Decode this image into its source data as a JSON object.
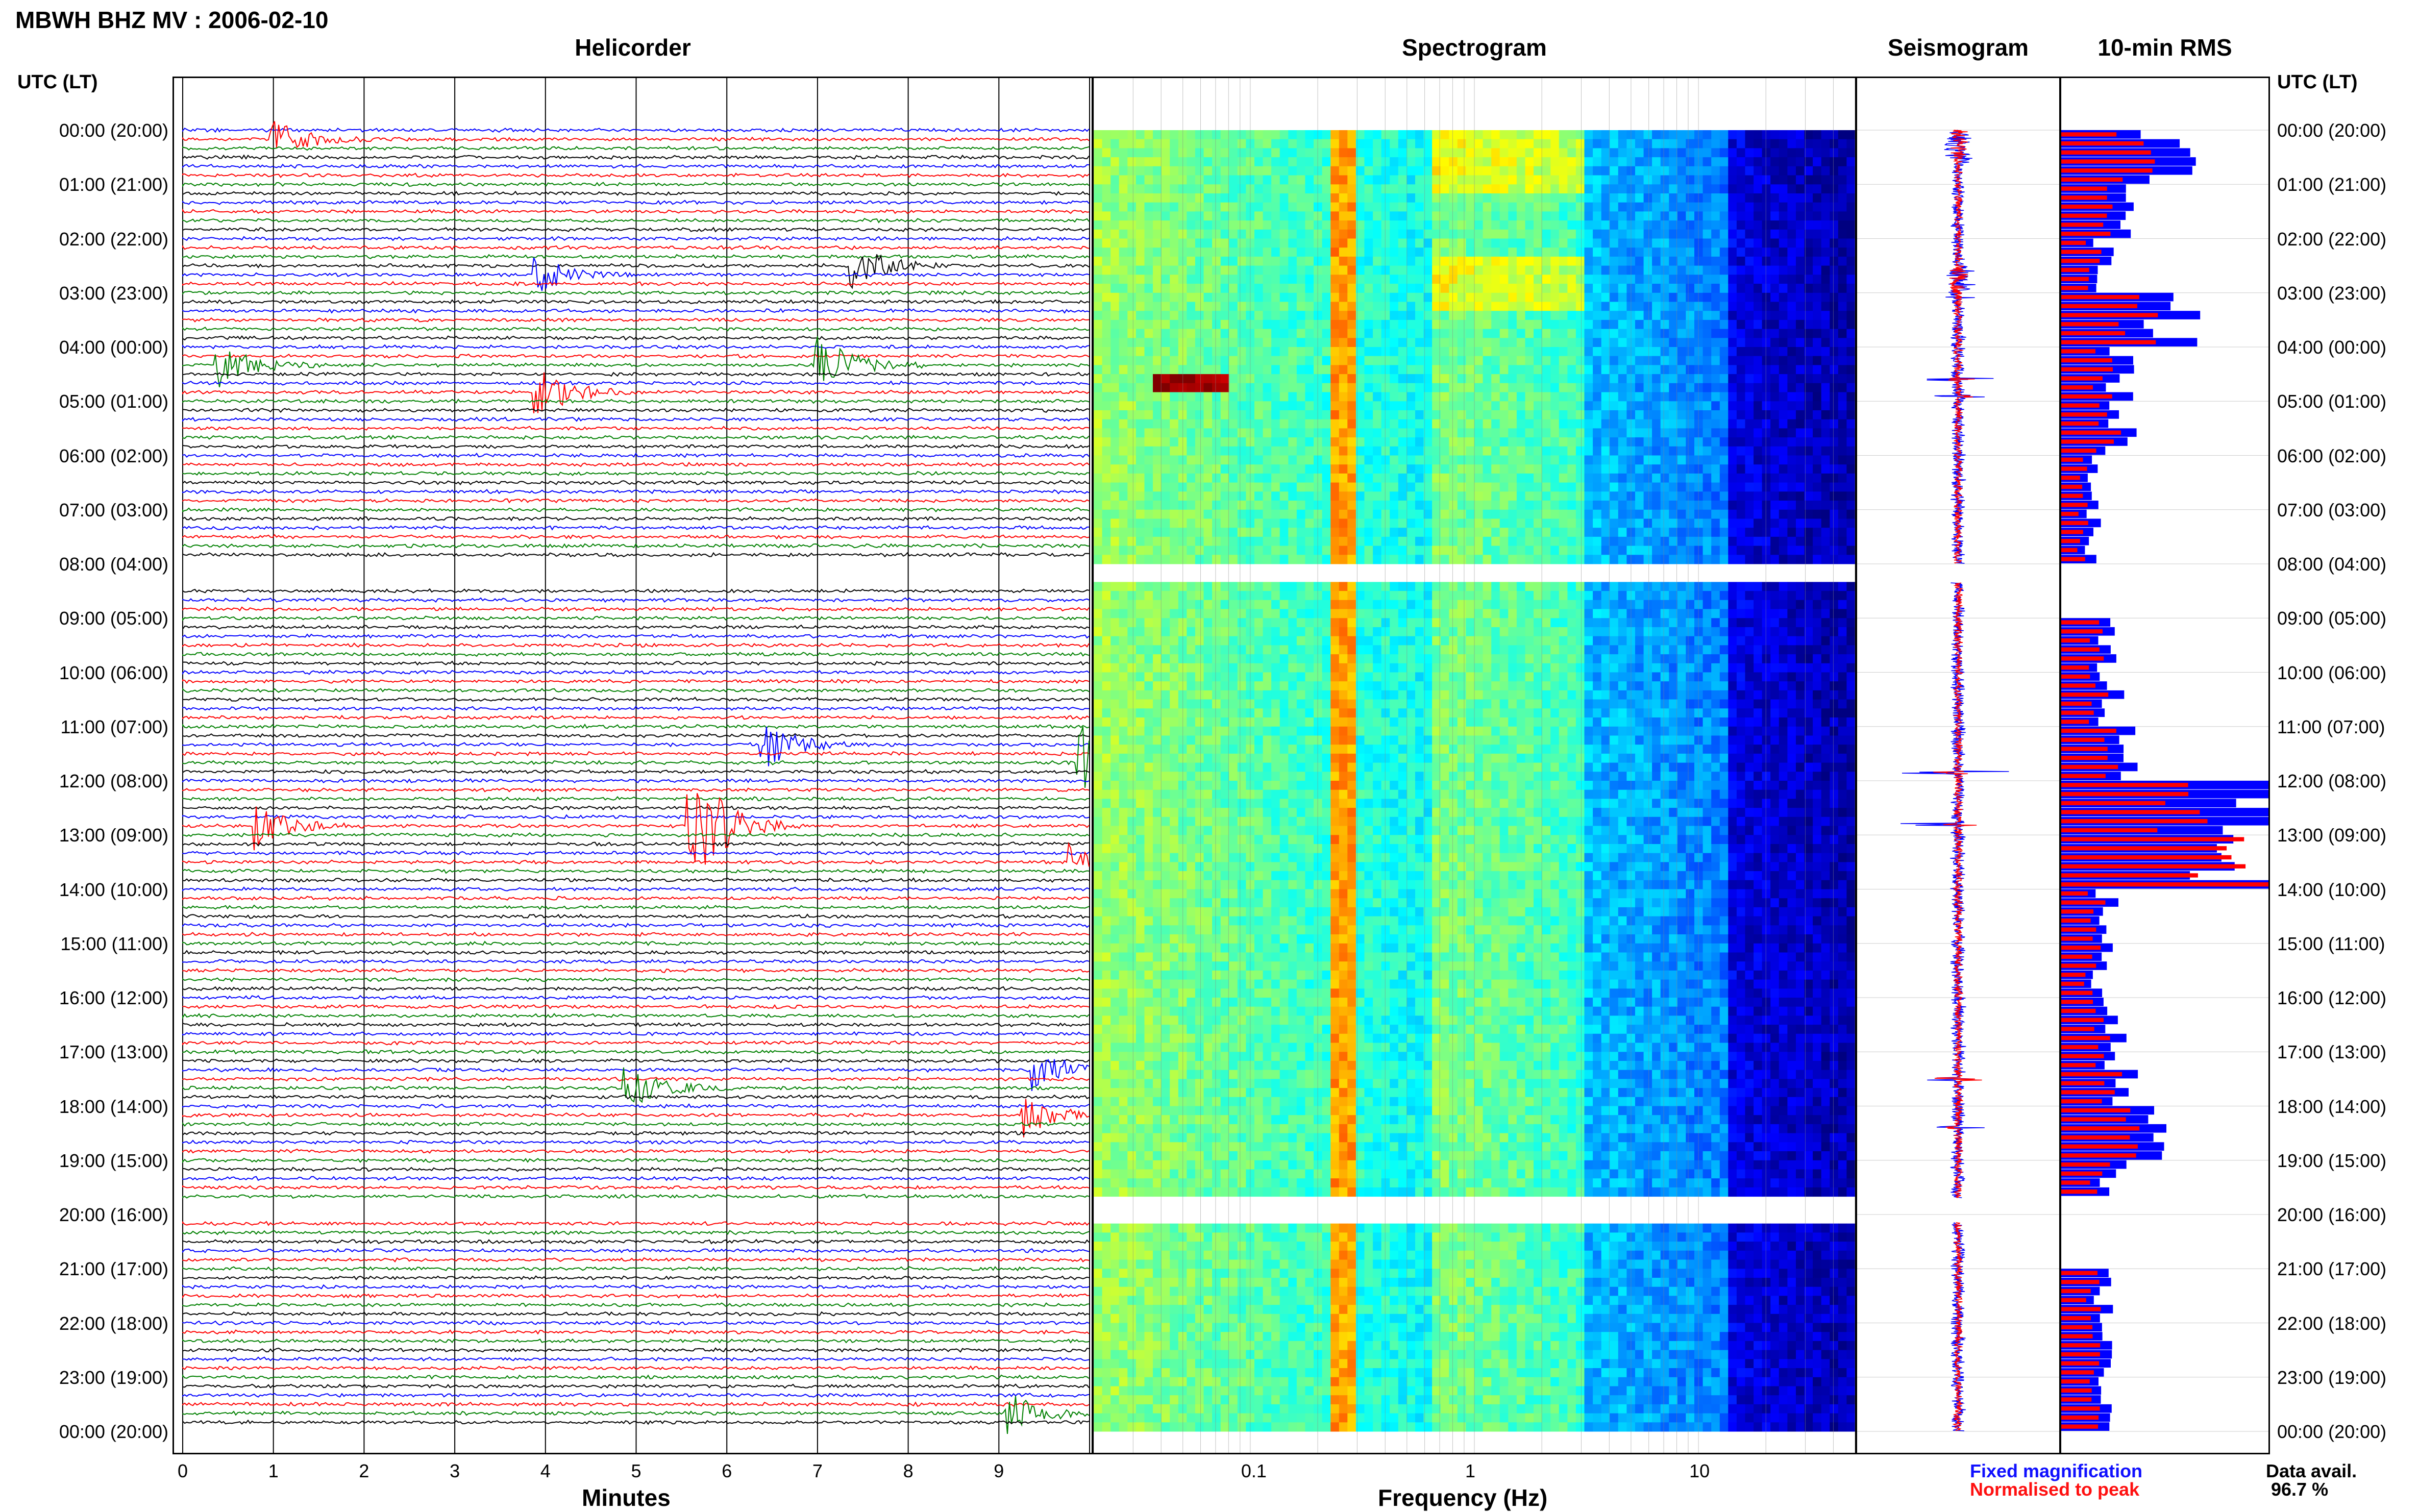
{
  "title": "MBWH BHZ MV : 2006-02-10",
  "panels": {
    "helicorder": "Helicorder",
    "spectrogram": "Spectrogram",
    "seismogram": "Seismogram",
    "rms": "10-min RMS"
  },
  "time_header": "UTC (LT)",
  "time_labels": [
    "00:00 (20:00)",
    "01:00 (21:00)",
    "02:00 (22:00)",
    "03:00 (23:00)",
    "04:00 (00:00)",
    "05:00 (01:00)",
    "06:00 (02:00)",
    "07:00 (03:00)",
    "08:00 (04:00)",
    "09:00 (05:00)",
    "10:00 (06:00)",
    "11:00 (07:00)",
    "12:00 (08:00)",
    "13:00 (09:00)",
    "14:00 (10:00)",
    "15:00 (11:00)",
    "16:00 (12:00)",
    "17:00 (13:00)",
    "18:00 (14:00)",
    "19:00 (15:00)",
    "20:00 (16:00)",
    "21:00 (17:00)",
    "22:00 (18:00)",
    "23:00 (19:00)",
    "00:00 (20:00)"
  ],
  "helicorder_axis": {
    "label": "Minutes",
    "ticks": [
      "0",
      "1",
      "2",
      "3",
      "4",
      "5",
      "6",
      "7",
      "8",
      "9"
    ]
  },
  "spectrogram_axis": {
    "label": "Frequency (Hz)",
    "ticks": [
      "0.1",
      "1",
      "10"
    ]
  },
  "legend": {
    "fixed": "Fixed magnification",
    "normalised": "Normalised to peak"
  },
  "availability": {
    "label": "Data avail.",
    "value": "96.7 %"
  },
  "colors": {
    "blue": "#0000ff",
    "red": "#ff0000",
    "green": "#008000",
    "dark_red": "#8b0000",
    "black": "#000000"
  },
  "chart_data": [
    {
      "type": "line",
      "name": "helicorder",
      "xlabel": "Minutes",
      "xlim": [
        0,
        10
      ],
      "ylim": [
        0,
        24
      ],
      "gaps_hours": [
        [
          8.0,
          8.35
        ],
        [
          19.7,
          20.15
        ]
      ],
      "events": [
        {
          "hour": 0.2,
          "minute": 1.0,
          "amp": 0.6
        },
        {
          "hour": 2.6,
          "minute": 3.9,
          "amp": 0.6
        },
        {
          "hour": 2.5,
          "minute": 7.4,
          "amp": 0.7
        },
        {
          "hour": 4.4,
          "minute": 7.0,
          "amp": 1.0
        },
        {
          "hour": 4.4,
          "minute": 0.4,
          "amp": 0.7
        },
        {
          "hour": 4.9,
          "minute": 3.9,
          "amp": 0.9
        },
        {
          "hour": 11.6,
          "minute": 9.9,
          "amp": 1.6
        },
        {
          "hour": 11.4,
          "minute": 6.4,
          "amp": 0.8
        },
        {
          "hour": 12.8,
          "minute": 5.6,
          "amp": 2.2
        },
        {
          "hour": 12.8,
          "minute": 0.8,
          "amp": 0.8
        },
        {
          "hour": 13.5,
          "minute": 9.8,
          "amp": 0.6
        },
        {
          "hour": 17.4,
          "minute": 9.4,
          "amp": 0.7
        },
        {
          "hour": 17.6,
          "minute": 4.9,
          "amp": 0.8
        },
        {
          "hour": 18.2,
          "minute": 9.3,
          "amp": 0.7
        },
        {
          "hour": 23.7,
          "minute": 9.1,
          "amp": 0.7
        }
      ]
    },
    {
      "type": "heatmap",
      "name": "spectrogram",
      "xlabel": "Frequency (Hz)",
      "xscale": "log",
      "xlim": [
        0.02,
        50
      ],
      "ylim": [
        0,
        24
      ],
      "gaps_hours": [
        [
          8.0,
          8.35
        ],
        [
          19.7,
          20.15
        ]
      ]
    },
    {
      "type": "line",
      "name": "seismogram",
      "ylim": [
        0,
        24
      ],
      "spikes": [
        {
          "hour": 11.85,
          "amp": 0.9
        },
        {
          "hour": 12.8,
          "amp": 1.0
        },
        {
          "hour": 17.5,
          "amp": 0.6
        },
        {
          "hour": 18.4,
          "amp": 0.6
        },
        {
          "hour": 4.6,
          "amp": 0.5
        },
        {
          "hour": 4.9,
          "amp": 0.4
        }
      ]
    },
    {
      "type": "bar",
      "name": "10-min RMS",
      "ylim": [
        0,
        24
      ],
      "hours": [
        0,
        1,
        2,
        3,
        4,
        5,
        6,
        7,
        8,
        9,
        10,
        11,
        12,
        13,
        14,
        15,
        16,
        17,
        18,
        19,
        20,
        21,
        22,
        23
      ],
      "fixed_values": [
        0.55,
        0.3,
        0.2,
        0.55,
        0.3,
        0.3,
        0.18,
        0.15,
        0.0,
        0.22,
        0.25,
        0.32,
        1.0,
        0.8,
        0.22,
        0.2,
        0.25,
        0.3,
        0.4,
        0.25,
        0.0,
        0.2,
        0.2,
        0.2
      ],
      "normalised_values": [
        0.45,
        0.25,
        0.18,
        0.45,
        0.25,
        0.28,
        0.15,
        0.12,
        0.0,
        0.2,
        0.22,
        0.28,
        0.7,
        1.0,
        0.2,
        0.18,
        0.22,
        0.28,
        0.35,
        0.22,
        0.0,
        0.18,
        0.18,
        0.18
      ]
    }
  ]
}
